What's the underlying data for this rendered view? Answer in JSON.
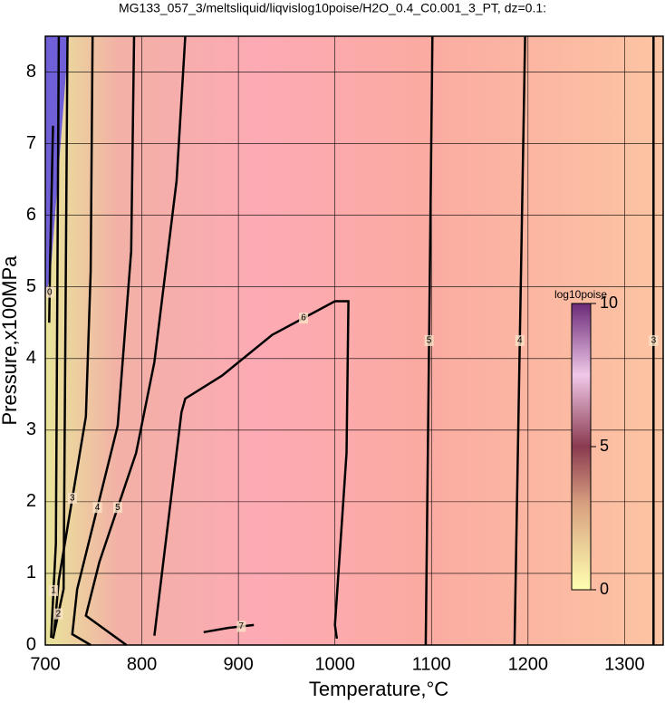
{
  "chart_data": {
    "type": "contour",
    "title": "MG133_057_3/meltsliquid/liqvislog10poise/H2O_0.4_C0.001_3_PT, dz=0.1:",
    "x_label": "Temperature,°C",
    "y_label": "Pressure,x100MPa",
    "xlim": [
      700,
      1340
    ],
    "ylim": [
      0,
      8.5
    ],
    "xticks": [
      700,
      800,
      900,
      1000,
      1100,
      1200,
      1300
    ],
    "yticks": [
      0,
      1,
      2,
      3,
      4,
      5,
      6,
      7,
      8
    ],
    "grid": true,
    "contours": [
      {
        "level": 7,
        "branches": [
          {
            "x": [
              864,
              890,
              916
            ],
            "y": [
              0.18,
              0.24,
              0.28
            ]
          }
        ]
      },
      {
        "level": 6,
        "branches": [
          {
            "x": [
              813,
              841,
              845,
              883,
              935,
              1000,
              1014,
              1012,
              1000,
              1002
            ],
            "y": [
              0.13,
              3.25,
              3.44,
              3.76,
              4.33,
              4.8,
              4.8,
              2.68,
              0.28,
              0.09
            ]
          }
        ]
      },
      {
        "level": 5,
        "branches": [
          {
            "x": [
              845,
              836,
              813,
              794,
              756,
              742,
              784
            ],
            "y": [
              8.5,
              6.48,
              3.95,
              2.68,
              1.16,
              0.41,
              0.0
            ]
          },
          {
            "x": [
              1101,
              1094
            ],
            "y": [
              8.5,
              0.0
            ]
          }
        ]
      },
      {
        "level": 4,
        "branches": [
          {
            "x": [
              792,
              789,
              775,
              733,
              728,
              747
            ],
            "y": [
              8.5,
              5.5,
              3.06,
              0.78,
              0.15,
              0.0
            ]
          },
          {
            "x": [
              1197,
              1186
            ],
            "y": [
              8.5,
              0.0
            ]
          }
        ]
      },
      {
        "level": 3,
        "branches": [
          {
            "x": [
              749,
              747,
              742,
              714,
              709
            ],
            "y": [
              8.5,
              5.22,
              3.19,
              0.91,
              0.15
            ]
          },
          {
            "x": [
              1330,
              1330
            ],
            "y": [
              8.5,
              0.0
            ]
          }
        ]
      },
      {
        "level": 2,
        "branches": [
          {
            "x": [
              723,
              719,
              708
            ],
            "y": [
              8.5,
              0.78,
              0.09
            ]
          }
        ]
      },
      {
        "level": 1,
        "branches": [
          {
            "x": [
              714,
              711,
              706
            ],
            "y": [
              8.5,
              1.42,
              0.1
            ]
          }
        ]
      },
      {
        "level": 0,
        "branches": [
          {
            "x": [
              708,
              705,
              704
            ],
            "y": [
              7.25,
              5.35,
              4.5
            ]
          }
        ]
      }
    ],
    "colorbar": {
      "label": "log10poise",
      "lim": [
        0,
        10
      ],
      "ticks": [
        0,
        5,
        10
      ]
    }
  }
}
